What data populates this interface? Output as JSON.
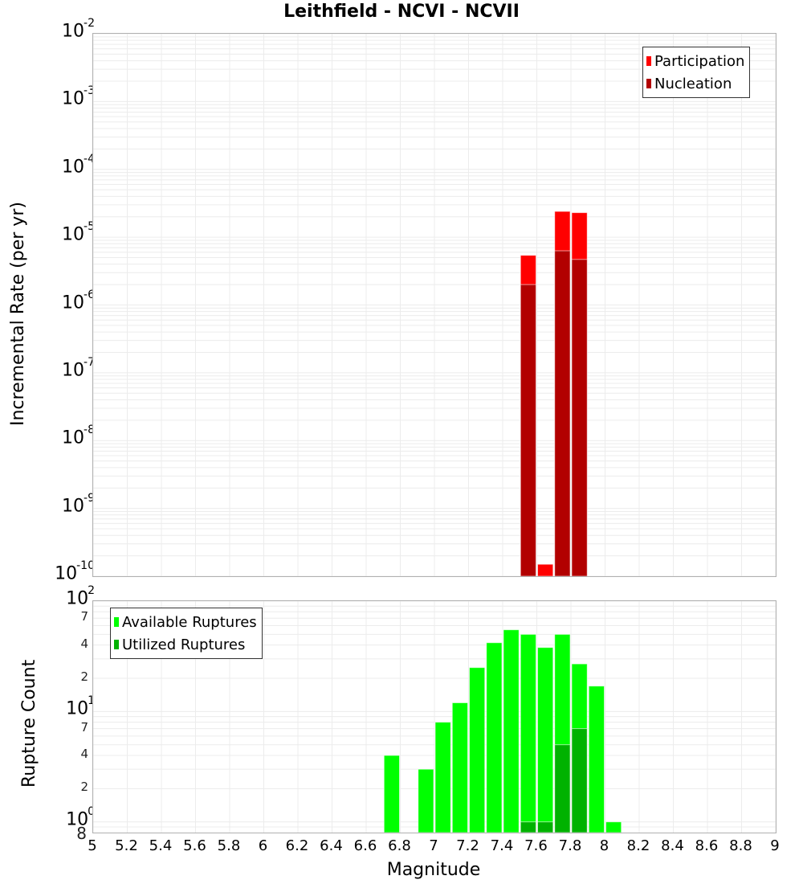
{
  "title": "Leithfield - NCVI - NCVII",
  "chart_data": [
    {
      "type": "bar",
      "title": "Leithfield - NCVI - NCVII",
      "xlabel": "Magnitude",
      "ylabel": "Incremental Rate (per yr)",
      "yscale": "log",
      "ylim": [
        1e-10,
        0.01
      ],
      "xlim": [
        5,
        9
      ],
      "grid": true,
      "legend_position": "top-right",
      "y_ticks": [
        "10^-2",
        "10^-3",
        "10^-4",
        "10^-5",
        "10^-6",
        "10^-7",
        "10^-8",
        "10^-9",
        "10^-10"
      ],
      "x": [
        7.55,
        7.65,
        7.75,
        7.85
      ],
      "series": [
        {
          "name": "Participation",
          "color": "#ff0000",
          "values": [
            5.4e-06,
            1.5e-10,
            2.4e-05,
            2.3e-05
          ]
        },
        {
          "name": "Nucleation",
          "color": "#b20000",
          "values": [
            2e-06,
            0,
            6.3e-06,
            4.7e-06
          ]
        }
      ]
    },
    {
      "type": "bar",
      "xlabel": "Magnitude",
      "ylabel": "Rupture Count",
      "yscale": "log",
      "ylim": [
        0.8,
        100
      ],
      "xlim": [
        5,
        9
      ],
      "grid": true,
      "legend_position": "top-left",
      "x": [
        6.75,
        6.95,
        7.05,
        7.15,
        7.25,
        7.35,
        7.45,
        7.55,
        7.65,
        7.75,
        7.85,
        7.95,
        8.05
      ],
      "series": [
        {
          "name": "Available Ruptures",
          "color": "#00ff00",
          "values": [
            4,
            3,
            8,
            12,
            25,
            42,
            55,
            50,
            38,
            50,
            27,
            17,
            1
          ]
        },
        {
          "name": "Utilized Ruptures",
          "color": "#00b200",
          "values": [
            0,
            0,
            0,
            0,
            0,
            0,
            0,
            1,
            1,
            5,
            7,
            0,
            0
          ]
        }
      ]
    }
  ],
  "top": {
    "ylabel": "Incremental Rate (per yr)",
    "yticks": [
      {
        "base": "10",
        "exp": "-2"
      },
      {
        "base": "10",
        "exp": "-3"
      },
      {
        "base": "10",
        "exp": "-4"
      },
      {
        "base": "10",
        "exp": "-5"
      },
      {
        "base": "10",
        "exp": "-6"
      },
      {
        "base": "10",
        "exp": "-7"
      },
      {
        "base": "10",
        "exp": "-8"
      },
      {
        "base": "10",
        "exp": "-9"
      },
      {
        "base": "10",
        "exp": "-10"
      }
    ],
    "legend": [
      {
        "label": "Participation",
        "color": "#ff0000"
      },
      {
        "label": "Nucleation",
        "color": "#b20000"
      }
    ]
  },
  "bottom": {
    "ylabel": "Rupture Count",
    "yticks": [
      {
        "base": "10",
        "exp": "2"
      },
      {
        "base": "10",
        "exp": "1"
      },
      {
        "base": "10",
        "exp": "0"
      }
    ],
    "minor_ticks": [
      "7",
      "4",
      "2",
      "7",
      "4",
      "2",
      "8"
    ],
    "legend": [
      {
        "label": "Available Ruptures",
        "color": "#00ff00"
      },
      {
        "label": "Utilized Ruptures",
        "color": "#00b200"
      }
    ]
  },
  "xaxis": {
    "label": "Magnitude",
    "ticks": [
      "5",
      "5.2",
      "5.4",
      "5.6",
      "5.8",
      "6",
      "6.2",
      "6.4",
      "6.6",
      "6.8",
      "7",
      "7.2",
      "7.4",
      "7.6",
      "7.8",
      "8",
      "8.2",
      "8.4",
      "8.6",
      "8.8",
      "9"
    ]
  }
}
